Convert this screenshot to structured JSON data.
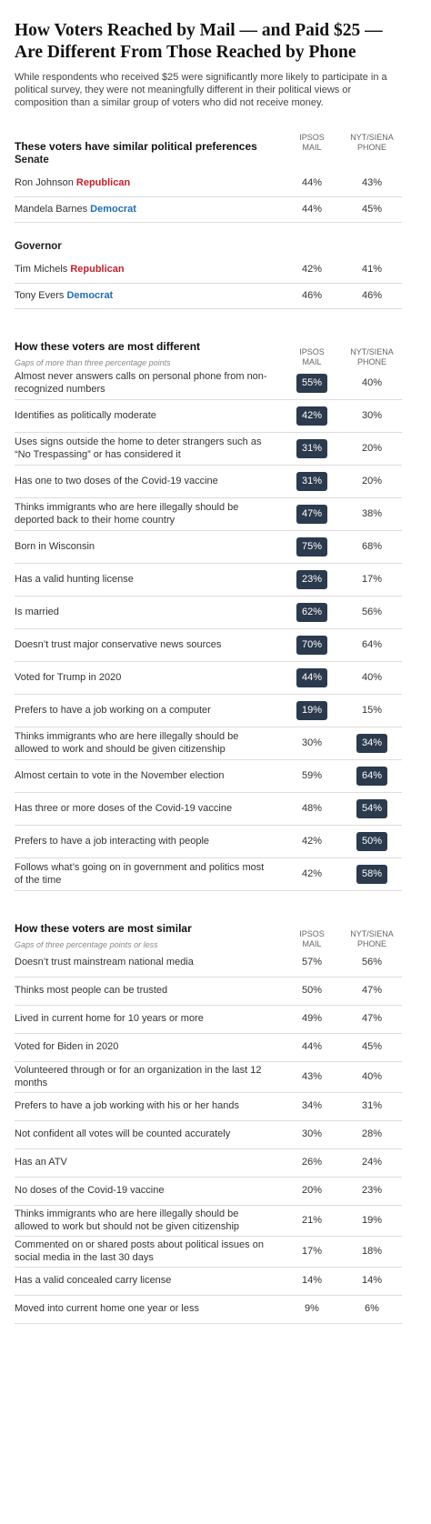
{
  "header": {
    "title": "How Voters Reached by Mail — and Paid $25 — Are Different From Those Reached by Phone",
    "intro": "While respondents who received $25 were significantly more likely to participate in a political survey, they were not meaningfully different in their political views or composition than a similar group of voters who did not receive money."
  },
  "sections": [
    {
      "title": "These voters have similar political preferences",
      "columns": [
        [
          "IPSOS",
          "MAIL"
        ],
        [
          "NYT/SIENA",
          "PHONE"
        ]
      ],
      "groups": [
        {
          "label": "Senate",
          "rows": [
            {
              "name": "Ron Johnson",
              "party": "Republican",
              "party_color": "#c2202e",
              "values": [
                "44%",
                "43%"
              ]
            },
            {
              "name": "Mandela Barnes",
              "party": "Democrat",
              "party_color": "#1f6fb2",
              "values": [
                "44%",
                "45%"
              ]
            }
          ]
        },
        {
          "label": "Governor",
          "rows": [
            {
              "name": "Tim Michels",
              "party": "Republican",
              "party_color": "#c2202e",
              "values": [
                "42%",
                "41%"
              ]
            },
            {
              "name": "Tony Evers",
              "party": "Democrat",
              "party_color": "#1f6fb2",
              "values": [
                "46%",
                "46%"
              ]
            }
          ]
        }
      ]
    },
    {
      "title": "How these voters are most different",
      "note": "Gaps of more than three percentage points",
      "columns": [
        [
          "IPSOS",
          "MAIL"
        ],
        [
          "NYT/SIENA",
          "PHONE"
        ]
      ],
      "highlight_color": "#2c3a4e",
      "groups": [
        {
          "rows": [
            {
              "name": "Almost never answers calls on personal phone from non-recognized numbers",
              "values": [
                "55%",
                "40%"
              ],
              "highlight": 0
            },
            {
              "name": "Identifies as politically moderate",
              "values": [
                "42%",
                "30%"
              ],
              "highlight": 0
            },
            {
              "name": "Uses signs outside the home to deter strangers such as “No Trespassing” or has considered it",
              "values": [
                "31%",
                "20%"
              ],
              "highlight": 0
            },
            {
              "name": "Has one to two doses of the Covid-19 vaccine",
              "values": [
                "31%",
                "20%"
              ],
              "highlight": 0
            },
            {
              "name": "Thinks immigrants who are here illegally should be deported back to their home country",
              "values": [
                "47%",
                "38%"
              ],
              "highlight": 0
            },
            {
              "name": "Born in Wisconsin",
              "values": [
                "75%",
                "68%"
              ],
              "highlight": 0
            },
            {
              "name": "Has a valid hunting license",
              "values": [
                "23%",
                "17%"
              ],
              "highlight": 0
            },
            {
              "name": "Is married",
              "values": [
                "62%",
                "56%"
              ],
              "highlight": 0
            },
            {
              "name": "Doesn’t trust major conservative news sources",
              "values": [
                "70%",
                "64%"
              ],
              "highlight": 0
            },
            {
              "name": "Voted for Trump in 2020",
              "values": [
                "44%",
                "40%"
              ],
              "highlight": 0
            },
            {
              "name": "Prefers to have a job working on a computer",
              "values": [
                "19%",
                "15%"
              ],
              "highlight": 0
            },
            {
              "name": "Thinks immigrants who are here illegally should be allowed to work and should be given citizenship",
              "values": [
                "30%",
                "34%"
              ],
              "highlight": 1
            },
            {
              "name": "Almost certain to vote in the November election",
              "values": [
                "59%",
                "64%"
              ],
              "highlight": 1
            },
            {
              "name": "Has three or more doses of the Covid-19 vaccine",
              "values": [
                "48%",
                "54%"
              ],
              "highlight": 1
            },
            {
              "name": "Prefers to have a job interacting with people",
              "values": [
                "42%",
                "50%"
              ],
              "highlight": 1
            },
            {
              "name": "Follows what’s going on in government and politics most of the time",
              "values": [
                "42%",
                "58%"
              ],
              "highlight": 1
            }
          ]
        }
      ]
    },
    {
      "title": "How these voters are most similar",
      "note": "Gaps of three percentage points or less",
      "columns": [
        [
          "IPSOS",
          "MAIL"
        ],
        [
          "NYT/SIENA",
          "PHONE"
        ]
      ],
      "groups": [
        {
          "rows": [
            {
              "name": "Doesn’t trust mainstream national media",
              "values": [
                "57%",
                "56%"
              ]
            },
            {
              "name": "Thinks most people can be trusted",
              "values": [
                "50%",
                "47%"
              ]
            },
            {
              "name": "Lived in current home for 10 years or more",
              "values": [
                "49%",
                "47%"
              ]
            },
            {
              "name": "Voted for Biden in 2020",
              "values": [
                "44%",
                "45%"
              ]
            },
            {
              "name": "Volunteered through or for an organization in the last 12 months",
              "values": [
                "43%",
                "40%"
              ]
            },
            {
              "name": "Prefers to have a job working with his or her hands",
              "values": [
                "34%",
                "31%"
              ]
            },
            {
              "name": "Not confident all votes will be counted accurately",
              "values": [
                "30%",
                "28%"
              ]
            },
            {
              "name": "Has an ATV",
              "values": [
                "26%",
                "24%"
              ]
            },
            {
              "name": "No doses of the Covid-19 vaccine",
              "values": [
                "20%",
                "23%"
              ]
            },
            {
              "name": "Thinks immigrants who are here illegally should be allowed to work but should not be given citizenship",
              "values": [
                "21%",
                "19%"
              ]
            },
            {
              "name": "Commented on or shared posts about political issues on social media in the last 30 days",
              "values": [
                "17%",
                "18%"
              ]
            },
            {
              "name": "Has a valid concealed carry license",
              "values": [
                "14%",
                "14%"
              ]
            },
            {
              "name": "Moved into current home one year or less",
              "values": [
                "9%",
                "6%"
              ]
            }
          ]
        }
      ]
    }
  ]
}
